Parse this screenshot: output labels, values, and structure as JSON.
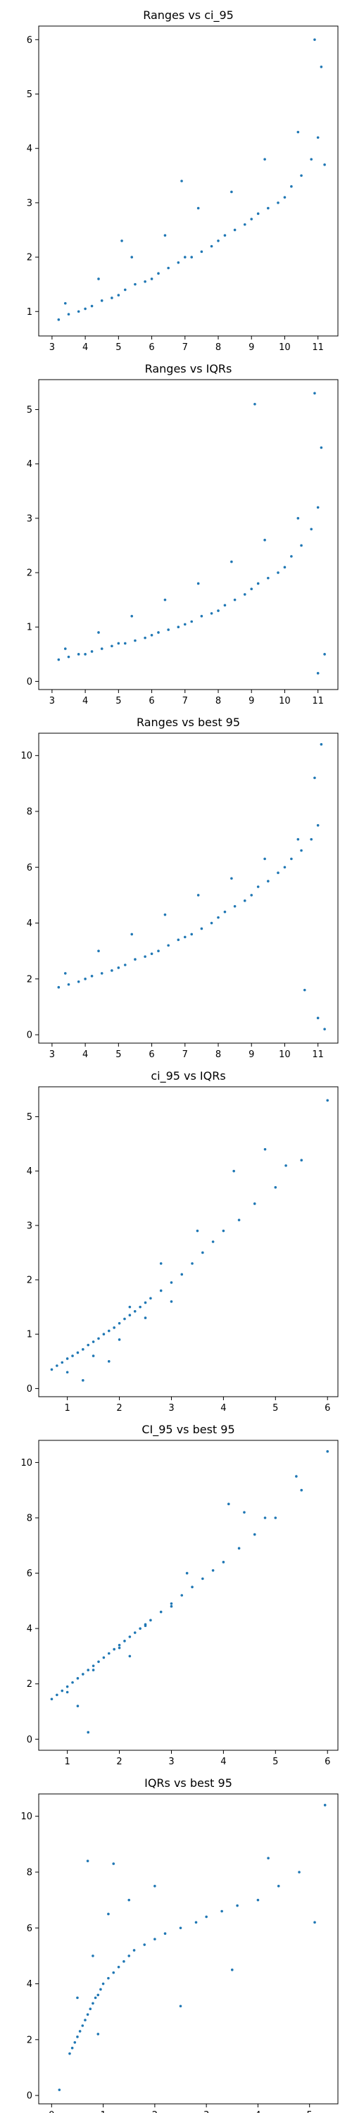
{
  "colors": {
    "marker": "#1f77b4",
    "axes": "#000000",
    "background": "#ffffff"
  },
  "chart_data": [
    {
      "type": "scatter",
      "title": "Ranges vs ci_95",
      "xlabel": "",
      "ylabel": "",
      "xlim": [
        2.6,
        11.6
      ],
      "ylim": [
        0.55,
        6.25
      ],
      "xticks": [
        3,
        4,
        5,
        6,
        7,
        8,
        9,
        10,
        11
      ],
      "yticks": [
        1,
        2,
        3,
        4,
        5,
        6
      ],
      "grid": false,
      "series": [
        {
          "x": [
            3.2,
            3.5,
            3.8,
            4.0,
            4.2,
            4.5,
            4.8,
            5.0,
            5.2,
            5.5,
            5.8,
            6.0,
            6.2,
            6.5,
            6.8,
            7.0,
            7.2,
            7.5,
            7.8,
            8.0,
            8.2,
            8.5,
            8.8,
            9.0,
            9.2,
            9.5,
            9.8,
            10.0,
            10.2,
            10.5,
            10.8,
            11.0,
            3.4,
            4.4,
            5.4,
            6.4,
            7.4,
            8.4,
            9.4,
            10.4,
            11.2,
            10.9,
            11.1,
            5.1,
            6.9
          ],
          "y": [
            0.85,
            0.95,
            1.0,
            1.05,
            1.1,
            1.2,
            1.25,
            1.3,
            1.4,
            1.5,
            1.55,
            1.6,
            1.7,
            1.8,
            1.9,
            2.0,
            2.0,
            2.1,
            2.2,
            2.3,
            2.4,
            2.5,
            2.6,
            2.7,
            2.8,
            2.9,
            3.0,
            3.1,
            3.3,
            3.5,
            3.8,
            4.2,
            1.15,
            1.6,
            2.0,
            2.4,
            2.9,
            3.2,
            3.8,
            4.3,
            3.7,
            6.0,
            5.5,
            2.3,
            3.4
          ]
        }
      ]
    },
    {
      "type": "scatter",
      "title": "Ranges vs IQRs",
      "xlabel": "",
      "ylabel": "",
      "xlim": [
        2.6,
        11.6
      ],
      "ylim": [
        -0.15,
        5.55
      ],
      "xticks": [
        3,
        4,
        5,
        6,
        7,
        8,
        9,
        10,
        11
      ],
      "yticks": [
        0,
        1,
        2,
        3,
        4,
        5
      ],
      "grid": false,
      "series": [
        {
          "x": [
            3.2,
            3.5,
            3.8,
            4.0,
            4.2,
            4.5,
            4.8,
            5.0,
            5.2,
            5.5,
            5.8,
            6.0,
            6.2,
            6.5,
            6.8,
            7.0,
            7.2,
            7.5,
            7.8,
            8.0,
            8.2,
            8.5,
            8.8,
            9.0,
            9.2,
            9.5,
            9.8,
            10.0,
            10.2,
            10.5,
            10.8,
            11.0,
            3.4,
            4.4,
            5.4,
            6.4,
            7.4,
            8.4,
            9.4,
            10.4,
            11.2,
            10.9,
            11.1,
            11.0,
            9.1
          ],
          "y": [
            0.4,
            0.45,
            0.5,
            0.5,
            0.55,
            0.6,
            0.65,
            0.7,
            0.7,
            0.75,
            0.8,
            0.85,
            0.9,
            0.95,
            1.0,
            1.05,
            1.1,
            1.2,
            1.25,
            1.3,
            1.4,
            1.5,
            1.6,
            1.7,
            1.8,
            1.9,
            2.0,
            2.1,
            2.3,
            2.5,
            2.8,
            3.2,
            0.6,
            0.9,
            1.2,
            1.5,
            1.8,
            2.2,
            2.6,
            3.0,
            0.5,
            5.3,
            4.3,
            0.15,
            5.1
          ]
        }
      ]
    },
    {
      "type": "scatter",
      "title": "Ranges vs best 95",
      "xlabel": "",
      "ylabel": "",
      "xlim": [
        2.6,
        11.6
      ],
      "ylim": [
        -0.3,
        10.8
      ],
      "xticks": [
        3,
        4,
        5,
        6,
        7,
        8,
        9,
        10,
        11
      ],
      "yticks": [
        0,
        2,
        4,
        6,
        8,
        10
      ],
      "grid": false,
      "series": [
        {
          "x": [
            3.2,
            3.5,
            3.8,
            4.0,
            4.2,
            4.5,
            4.8,
            5.0,
            5.2,
            5.5,
            5.8,
            6.0,
            6.2,
            6.5,
            6.8,
            7.0,
            7.2,
            7.5,
            7.8,
            8.0,
            8.2,
            8.5,
            8.8,
            9.0,
            9.2,
            9.5,
            9.8,
            10.0,
            10.2,
            10.5,
            10.8,
            11.0,
            3.4,
            4.4,
            5.4,
            6.4,
            7.4,
            8.4,
            9.4,
            10.4,
            11.2,
            11.1,
            11.0,
            10.6,
            10.9
          ],
          "y": [
            1.7,
            1.8,
            1.9,
            2.0,
            2.1,
            2.2,
            2.3,
            2.4,
            2.5,
            2.7,
            2.8,
            2.9,
            3.0,
            3.2,
            3.4,
            3.5,
            3.6,
            3.8,
            4.0,
            4.2,
            4.4,
            4.6,
            4.8,
            5.0,
            5.3,
            5.5,
            5.8,
            6.0,
            6.3,
            6.6,
            7.0,
            7.5,
            2.2,
            3.0,
            3.6,
            4.3,
            5.0,
            5.6,
            6.3,
            7.0,
            0.2,
            10.4,
            0.6,
            1.6,
            9.2
          ]
        }
      ]
    },
    {
      "type": "scatter",
      "title": "ci_95 vs IQRs",
      "xlabel": "",
      "ylabel": "",
      "xlim": [
        0.45,
        6.2
      ],
      "ylim": [
        -0.15,
        5.55
      ],
      "xticks": [
        1,
        2,
        3,
        4,
        5,
        6
      ],
      "yticks": [
        0,
        1,
        2,
        3,
        4,
        5
      ],
      "grid": false,
      "series": [
        {
          "x": [
            0.7,
            0.8,
            0.9,
            1.0,
            1.1,
            1.2,
            1.3,
            1.4,
            1.5,
            1.6,
            1.7,
            1.8,
            1.9,
            2.0,
            2.1,
            2.2,
            2.3,
            2.4,
            2.5,
            2.6,
            2.8,
            3.0,
            3.2,
            3.4,
            3.6,
            3.8,
            4.0,
            4.3,
            4.6,
            5.0,
            5.5,
            6.0,
            1.0,
            1.5,
            2.0,
            2.5,
            3.0,
            1.3,
            1.8,
            2.2,
            2.8,
            3.5,
            4.2,
            5.2,
            4.8
          ],
          "y": [
            0.35,
            0.42,
            0.48,
            0.55,
            0.6,
            0.66,
            0.72,
            0.8,
            0.86,
            0.92,
            1.0,
            1.06,
            1.12,
            1.2,
            1.28,
            1.35,
            1.42,
            1.5,
            1.58,
            1.66,
            1.8,
            1.95,
            2.1,
            2.3,
            2.5,
            2.7,
            2.9,
            3.1,
            3.4,
            3.7,
            4.2,
            5.3,
            0.3,
            0.6,
            0.9,
            1.3,
            1.6,
            0.15,
            0.5,
            1.5,
            2.3,
            2.9,
            4.0,
            4.1,
            4.4
          ]
        }
      ]
    },
    {
      "type": "scatter",
      "title": "CI_95 vs best 95",
      "xlabel": "",
      "ylabel": "",
      "xlim": [
        0.45,
        6.2
      ],
      "ylim": [
        -0.4,
        10.8
      ],
      "xticks": [
        1,
        2,
        3,
        4,
        5,
        6
      ],
      "yticks": [
        0,
        2,
        4,
        6,
        8,
        10
      ],
      "grid": false,
      "series": [
        {
          "x": [
            0.7,
            0.8,
            0.9,
            1.0,
            1.1,
            1.2,
            1.3,
            1.4,
            1.5,
            1.6,
            1.7,
            1.8,
            1.9,
            2.0,
            2.1,
            2.2,
            2.3,
            2.4,
            2.5,
            2.6,
            2.8,
            3.0,
            3.2,
            3.4,
            3.6,
            3.8,
            4.0,
            4.3,
            4.6,
            5.0,
            5.5,
            6.0,
            1.0,
            1.5,
            2.0,
            2.5,
            3.0,
            1.4,
            1.2,
            2.2,
            3.3,
            4.1,
            4.4,
            5.4,
            4.8
          ],
          "y": [
            1.45,
            1.6,
            1.75,
            1.9,
            2.05,
            2.2,
            2.35,
            2.5,
            2.65,
            2.8,
            2.95,
            3.1,
            3.25,
            3.4,
            3.55,
            3.7,
            3.85,
            4.0,
            4.15,
            4.3,
            4.6,
            4.9,
            5.2,
            5.5,
            5.8,
            6.1,
            6.4,
            6.9,
            7.4,
            8.0,
            9.0,
            10.4,
            1.7,
            2.5,
            3.3,
            4.1,
            4.8,
            0.25,
            1.2,
            3.0,
            6.0,
            8.5,
            8.2,
            9.5,
            8.0
          ]
        }
      ]
    },
    {
      "type": "scatter",
      "title": "IQRs vs best 95",
      "xlabel": "",
      "ylabel": "",
      "xlim": [
        -0.25,
        5.55
      ],
      "ylim": [
        -0.3,
        10.8
      ],
      "xticks": [
        0,
        1,
        2,
        3,
        4,
        5
      ],
      "yticks": [
        0,
        2,
        4,
        6,
        8,
        10
      ],
      "grid": false,
      "series": [
        {
          "x": [
            0.35,
            0.4,
            0.45,
            0.5,
            0.55,
            0.6,
            0.65,
            0.7,
            0.75,
            0.8,
            0.85,
            0.9,
            0.95,
            1.0,
            1.1,
            1.2,
            1.3,
            1.4,
            1.5,
            1.6,
            1.8,
            2.0,
            2.2,
            2.5,
            2.8,
            3.0,
            3.3,
            3.6,
            4.0,
            4.4,
            4.8,
            5.3,
            0.5,
            0.8,
            1.1,
            1.5,
            2.0,
            0.7,
            0.9,
            1.2,
            0.15,
            2.5,
            3.5,
            5.1,
            4.2
          ],
          "y": [
            1.5,
            1.7,
            1.9,
            2.1,
            2.3,
            2.5,
            2.7,
            2.9,
            3.1,
            3.3,
            3.5,
            3.6,
            3.8,
            4.0,
            4.2,
            4.4,
            4.6,
            4.8,
            5.0,
            5.2,
            5.4,
            5.6,
            5.8,
            6.0,
            6.2,
            6.4,
            6.6,
            6.8,
            7.0,
            7.5,
            8.0,
            10.4,
            3.5,
            5.0,
            6.5,
            7.0,
            7.5,
            8.4,
            2.2,
            8.3,
            0.2,
            3.2,
            4.5,
            6.2,
            8.5
          ]
        }
      ]
    }
  ]
}
